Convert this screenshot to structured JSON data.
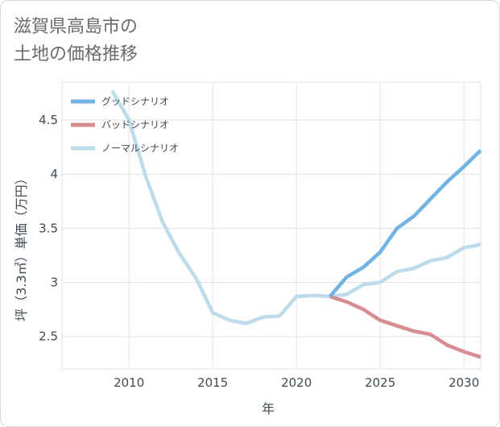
{
  "title": {
    "line1": "滋賀県高島市の",
    "line2": "土地の価格推移"
  },
  "colors": {
    "grid": "#d9e2ea",
    "axis_text": "#3e4a56",
    "title_text": "#6b6b6b"
  },
  "chart_data": {
    "type": "line",
    "xlabel": "年",
    "ylabel": "坪（3.3㎡）単価（万円）",
    "xlim": [
      2006,
      2031
    ],
    "ylim": [
      2.2,
      4.85
    ],
    "x_ticks": [
      2010,
      2015,
      2020,
      2025,
      2030
    ],
    "x_tick_labels": [
      "2010",
      "2015",
      "2020",
      "2025",
      "2030"
    ],
    "y_ticks": [
      2.5,
      3,
      3.5,
      4,
      4.5
    ],
    "y_tick_labels": [
      "2.5",
      "3",
      "3.5",
      "4",
      "4.5"
    ],
    "grid": true,
    "legend_position": "top-left",
    "series": [
      {
        "name": "グッドシナリオ",
        "color": "#6cb5e9",
        "x": [
          2022,
          2023,
          2024,
          2025,
          2026,
          2027,
          2028,
          2029,
          2030,
          2031
        ],
        "y": [
          2.87,
          3.05,
          3.14,
          3.28,
          3.5,
          3.61,
          3.77,
          3.93,
          4.07,
          4.22
        ]
      },
      {
        "name": "バッドシナリオ",
        "color": "#de8b8f",
        "x": [
          2022,
          2023,
          2024,
          2025,
          2026,
          2027,
          2028,
          2029,
          2030,
          2031
        ],
        "y": [
          2.87,
          2.82,
          2.75,
          2.65,
          2.6,
          2.55,
          2.52,
          2.42,
          2.36,
          2.31
        ]
      },
      {
        "name": "ノーマルシナリオ",
        "color": "#bcdcec",
        "x": [
          2009,
          2010,
          2011,
          2012,
          2013,
          2014,
          2015,
          2016,
          2017,
          2018,
          2019,
          2020,
          2021,
          2022,
          2023,
          2024,
          2025,
          2026,
          2027,
          2028,
          2029,
          2030,
          2031
        ],
        "y": [
          4.77,
          4.5,
          3.98,
          3.56,
          3.27,
          3.04,
          2.72,
          2.65,
          2.62,
          2.68,
          2.69,
          2.87,
          2.88,
          2.87,
          2.89,
          2.98,
          3.0,
          3.1,
          3.13,
          3.2,
          3.23,
          3.32,
          3.35
        ]
      }
    ]
  }
}
